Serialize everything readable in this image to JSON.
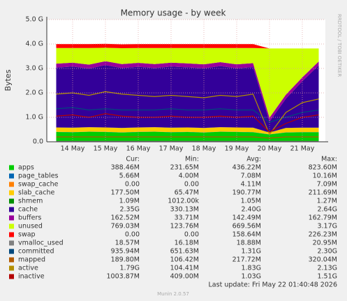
{
  "chart_data": {
    "type": "stacked-area",
    "title": "Memory usage - by week",
    "ylabel": "Bytes",
    "side_note": "RRDTOOL / TOBI OETIKER",
    "categories": [
      null,
      "14 May",
      null,
      "15 May",
      null,
      "16 May",
      null,
      "17 May",
      null,
      "18 May",
      null,
      "19 May",
      null,
      "20 May",
      null,
      "21 May",
      null
    ],
    "ylim": [
      0,
      5
    ],
    "yticks": [
      {
        "value": 0,
        "label": "0.0"
      },
      {
        "value": 1,
        "label": "1.0 G"
      },
      {
        "value": 2,
        "label": "2.0 G"
      },
      {
        "value": 3,
        "label": "3.0 G"
      },
      {
        "value": 4,
        "label": "4.0 G"
      },
      {
        "value": 5,
        "label": "5.0 G"
      }
    ],
    "grid": true,
    "stat_headers": [
      "Cur:",
      "Min:",
      "Avg:",
      "Max:"
    ],
    "series": [
      {
        "name": "apps",
        "color": "#00cc00",
        "kind": "area",
        "stats": [
          "388.46M",
          "231.65M",
          "436.22M",
          "823.60M"
        ],
        "values": [
          0.4,
          0.39,
          0.41,
          0.4,
          0.38,
          0.4,
          0.41,
          0.39,
          0.4,
          0.38,
          0.41,
          0.4,
          0.39,
          0.3,
          0.38,
          0.39,
          0.39
        ]
      },
      {
        "name": "page_tables",
        "color": "#0066b3",
        "kind": "area",
        "stats": [
          "5.66M",
          "4.00M",
          "7.08M",
          "10.16M"
        ],
        "values": [
          0.006,
          0.006,
          0.006,
          0.006,
          0.006,
          0.006,
          0.006,
          0.006,
          0.006,
          0.006,
          0.006,
          0.006,
          0.006,
          0.006,
          0.006,
          0.006,
          0.006
        ]
      },
      {
        "name": "swap_cache",
        "color": "#ff8000",
        "kind": "area",
        "stats": [
          "0.00",
          "0.00",
          "4.11M",
          "7.09M"
        ],
        "values": [
          0,
          0,
          0,
          0,
          0,
          0,
          0,
          0,
          0,
          0,
          0,
          0,
          0,
          0,
          0,
          0,
          0
        ]
      },
      {
        "name": "slab_cache",
        "color": "#ffcc00",
        "kind": "area",
        "stats": [
          "177.50M",
          "65.47M",
          "190.77M",
          "211.69M"
        ],
        "values": [
          0.18,
          0.18,
          0.18,
          0.18,
          0.18,
          0.18,
          0.18,
          0.18,
          0.18,
          0.18,
          0.18,
          0.18,
          0.18,
          0.07,
          0.18,
          0.18,
          0.18
        ]
      },
      {
        "name": "shmem",
        "color": "#008f00",
        "kind": "area",
        "stats": [
          "1.09M",
          "1012.00k",
          "1.05M",
          "1.27M"
        ],
        "values": [
          0.001,
          0.001,
          0.001,
          0.001,
          0.001,
          0.001,
          0.001,
          0.001,
          0.001,
          0.001,
          0.001,
          0.001,
          0.001,
          0.001,
          0.001,
          0.001,
          0.001
        ]
      },
      {
        "name": "cache",
        "color": "#330099",
        "kind": "area",
        "stats": [
          "2.35G",
          "330.13M",
          "2.40G",
          "2.64G"
        ],
        "values": [
          2.45,
          2.5,
          2.4,
          2.55,
          2.45,
          2.48,
          2.42,
          2.5,
          2.46,
          2.44,
          2.5,
          2.42,
          2.48,
          0.45,
          1.2,
          1.9,
          2.55
        ]
      },
      {
        "name": "buffers",
        "color": "#990099",
        "kind": "area",
        "stats": [
          "162.52M",
          "33.71M",
          "142.49M",
          "162.79M"
        ],
        "values": [
          0.16,
          0.16,
          0.16,
          0.16,
          0.16,
          0.16,
          0.16,
          0.16,
          0.16,
          0.16,
          0.16,
          0.16,
          0.16,
          0.16,
          0.16,
          0.16,
          0.16
        ]
      },
      {
        "name": "unused",
        "color": "#ccff00",
        "kind": "area",
        "stats": [
          "769.03M",
          "123.76M",
          "669.56M",
          "3.17G"
        ],
        "values": [
          0.64,
          0.6,
          0.68,
          0.55,
          0.65,
          0.61,
          0.66,
          0.6,
          0.63,
          0.67,
          0.58,
          0.67,
          0.62,
          2.83,
          1.89,
          1.18,
          0.53
        ]
      },
      {
        "name": "swap",
        "color": "#ff0000",
        "kind": "area",
        "stats": [
          "0.00",
          "0.00",
          "158.64M",
          "226.23M"
        ],
        "values": [
          0.16,
          0.16,
          0.16,
          0.16,
          0.16,
          0.16,
          0.16,
          0.16,
          0.16,
          0.16,
          0.16,
          0.16,
          0.16,
          0,
          0,
          0,
          0
        ]
      },
      {
        "name": "vmalloc_used",
        "color": "#808080",
        "kind": "line",
        "stats": [
          "18.57M",
          "16.18M",
          "18.88M",
          "20.95M"
        ],
        "values": [
          0.019,
          0.019,
          0.019,
          0.019,
          0.019,
          0.019,
          0.019,
          0.019,
          0.019,
          0.019,
          0.019,
          0.019,
          0.019,
          0.019,
          0.019,
          0.019,
          0.019
        ]
      },
      {
        "name": "committed",
        "color": "#00487d",
        "kind": "line",
        "stats": [
          "935.94M",
          "651.63M",
          "1.31G",
          "2.30G"
        ],
        "values": [
          1.35,
          1.4,
          1.3,
          1.35,
          1.3,
          1.3,
          1.3,
          1.35,
          1.3,
          1.3,
          1.35,
          1.3,
          1.3,
          0.8,
          1.0,
          1.2,
          1.3
        ]
      },
      {
        "name": "mapped",
        "color": "#b35a00",
        "kind": "line",
        "stats": [
          "189.80M",
          "106.42M",
          "217.72M",
          "320.04M"
        ],
        "values": [
          0.2,
          0.2,
          0.2,
          0.2,
          0.2,
          0.2,
          0.2,
          0.2,
          0.2,
          0.2,
          0.2,
          0.2,
          0.2,
          0.15,
          0.2,
          0.2,
          0.2
        ]
      },
      {
        "name": "active",
        "color": "#b38f00",
        "kind": "line",
        "stats": [
          "1.79G",
          "104.41M",
          "1.83G",
          "2.13G"
        ],
        "values": [
          1.95,
          2.0,
          1.9,
          2.05,
          1.95,
          1.9,
          1.85,
          1.9,
          1.85,
          1.8,
          1.9,
          1.85,
          1.95,
          0.3,
          1.2,
          1.6,
          1.75
        ]
      },
      {
        "name": "inactive",
        "color": "#b30000",
        "kind": "line",
        "stats": [
          "1003.87M",
          "409.00M",
          "1.03G",
          "1.51G"
        ],
        "values": [
          1.05,
          1.1,
          1.0,
          1.15,
          1.05,
          1.0,
          1.0,
          1.05,
          1.0,
          1.0,
          1.05,
          1.0,
          1.05,
          0.4,
          0.75,
          1.0,
          1.1
        ]
      }
    ],
    "last_update": "Last update: Fri May 22 01:40:48 2026",
    "footer": "Munin 2.0.57"
  }
}
